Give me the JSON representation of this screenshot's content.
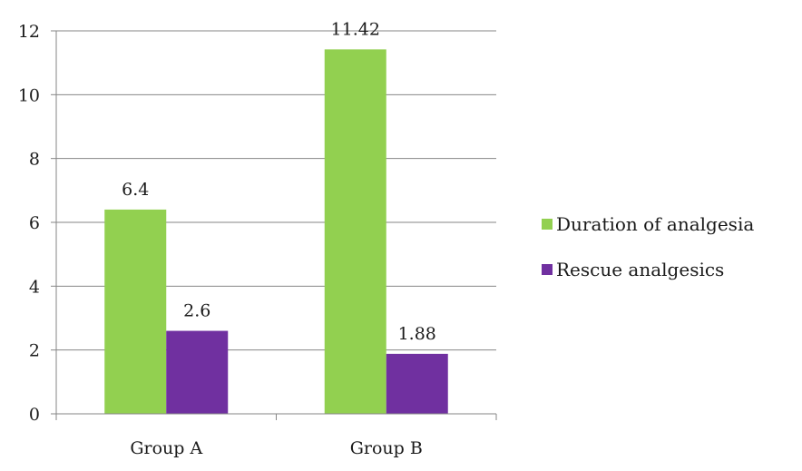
{
  "chart_data": {
    "type": "bar",
    "title": "",
    "xlabel": "",
    "ylabel": "",
    "categories": [
      "Group A",
      "Group B"
    ],
    "series": [
      {
        "name": "Duration of analgesia",
        "values": [
          6.4,
          11.42
        ],
        "labels": [
          "6.4",
          "11.42"
        ],
        "color": "#92d050"
      },
      {
        "name": "Rescue analgesics",
        "values": [
          2.6,
          1.88
        ],
        "labels": [
          "2.6",
          "1.88"
        ],
        "color": "#7030a0"
      }
    ],
    "ylim": [
      0,
      12
    ],
    "yticks": [
      0,
      2,
      4,
      6,
      8,
      10,
      12
    ],
    "ytick_labels": [
      "0",
      "2",
      "4",
      "6",
      "8",
      "10",
      "12"
    ],
    "grid": true,
    "legend_position": "right"
  },
  "colors": {
    "grid": "#868686",
    "axis": "#868686"
  }
}
